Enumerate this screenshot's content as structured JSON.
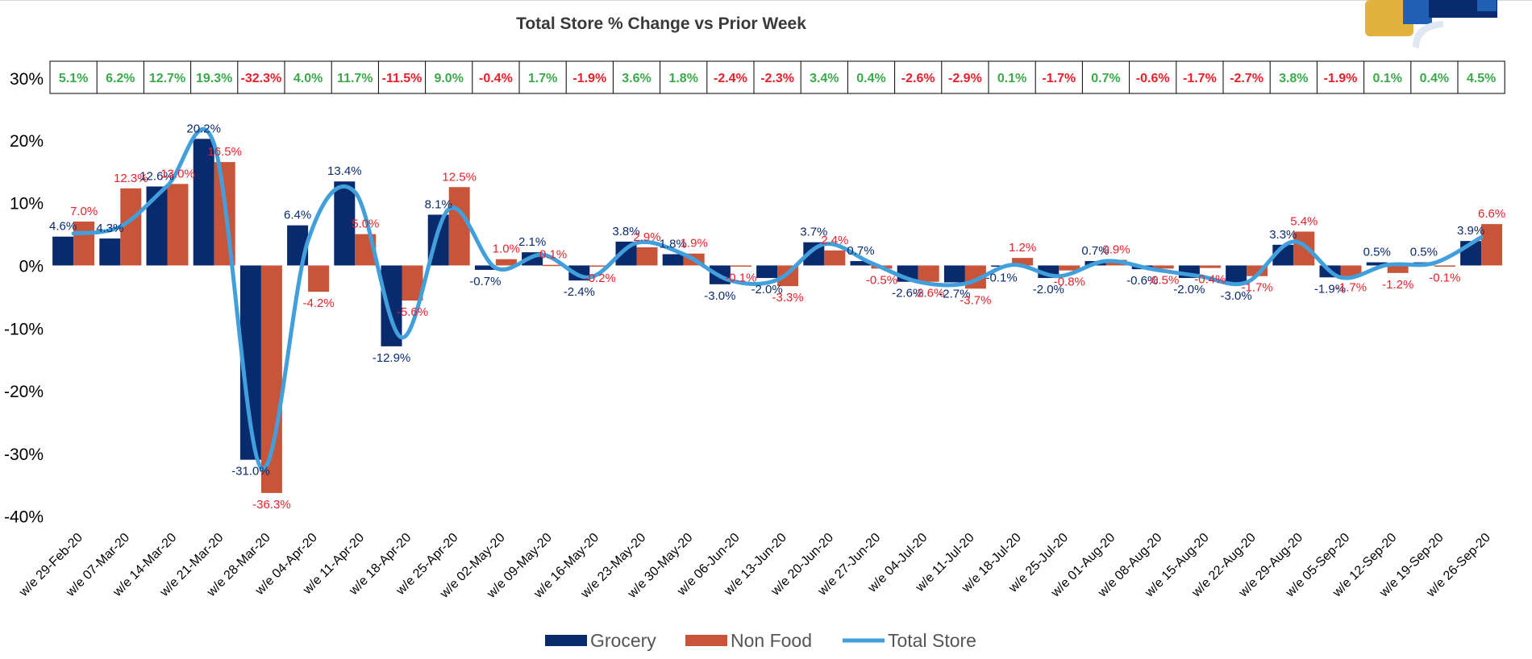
{
  "chart_data": {
    "type": "bar",
    "title": "Total Store % Change vs Prior Week",
    "categories": [
      "w/e 29-Feb-20",
      "w/e 07-Mar-20",
      "w/e 14-Mar-20",
      "w/e 21-Mar-20",
      "w/e 28-Mar-20",
      "w/e 04-Apr-20",
      "w/e 11-Apr-20",
      "w/e 18-Apr-20",
      "w/e 25-Apr-20",
      "w/e 02-May-20",
      "w/e 09-May-20",
      "w/e 16-May-20",
      "w/e 23-May-20",
      "w/e 30-May-20",
      "w/e 06-Jun-20",
      "w/e 13-Jun-20",
      "w/e 20-Jun-20",
      "w/e 27-Jun-20",
      "w/e 04-Jul-20",
      "w/e 11-Jul-20",
      "w/e 18-Jul-20",
      "w/e 25-Jul-20",
      "w/e 01-Aug-20",
      "w/e 08-Aug-20",
      "w/e 15-Aug-20",
      "w/e 22-Aug-20",
      "w/e 29-Aug-20",
      "w/e 05-Sep-20",
      "w/e 12-Sep-20",
      "w/e 19-Sep-20",
      "w/e 26-Sep-20"
    ],
    "series": [
      {
        "name": "Grocery",
        "kind": "bar",
        "color": "#0a2a6e",
        "values": [
          4.6,
          4.3,
          12.6,
          20.2,
          -31.0,
          6.4,
          13.4,
          -12.9,
          8.1,
          -0.7,
          2.1,
          -2.4,
          3.8,
          1.8,
          -3.0,
          -2.0,
          3.7,
          0.7,
          -2.6,
          -2.7,
          -0.1,
          -2.0,
          0.7,
          -0.6,
          -2.0,
          -3.0,
          3.3,
          -1.9,
          0.5,
          0.5,
          3.9
        ],
        "labels": [
          "4.6%",
          "4.3%",
          "12.6%",
          "20.2%",
          "-31.0%",
          "6.4%",
          "13.4%",
          "-12.9%",
          "8.1%",
          "-0.7%",
          "2.1%",
          "-2.4%",
          "3.8%",
          "1.8%",
          "-3.0%",
          "-2.0%",
          "3.7%",
          "0.7%",
          "-2.6%",
          "-2.7%",
          "-0.1%",
          "-2.0%",
          "0.7%",
          "-0.6%",
          "-2.0%",
          "-3.0%",
          "3.3%",
          "-1.9%",
          "0.5%",
          "0.5%",
          "3.9%"
        ]
      },
      {
        "name": "Non Food",
        "kind": "bar",
        "color": "#c8553a",
        "values": [
          7.0,
          12.3,
          13.0,
          16.5,
          -36.3,
          -4.2,
          5.0,
          -5.6,
          12.5,
          1.0,
          0.1,
          -0.2,
          2.9,
          1.9,
          -0.1,
          -3.3,
          2.4,
          -0.5,
          -2.6,
          -3.7,
          1.2,
          -0.8,
          0.9,
          -0.5,
          -0.4,
          -1.7,
          5.4,
          -1.7,
          -1.2,
          -0.1,
          6.6
        ],
        "labels": [
          "7.0%",
          "12.3%",
          "13.0%",
          "16.5%",
          "-36.3%",
          "-4.2%",
          "5.0%",
          "-5.6%",
          "12.5%",
          "1.0%",
          "0.1%",
          "-0.2%",
          "2.9%",
          "1.9%",
          "-0.1%",
          "-3.3%",
          "2.4%",
          "-0.5%",
          "-2.6%",
          "-3.7%",
          "1.2%",
          "-0.8%",
          "0.9%",
          "-0.5%",
          "-0.4%",
          "-1.7%",
          "5.4%",
          "-1.7%",
          "-1.2%",
          "-0.1%",
          "6.6%"
        ]
      },
      {
        "name": "Total Store",
        "kind": "line",
        "color": "#41a0dc",
        "values": [
          5.1,
          6.2,
          12.7,
          19.3,
          -32.3,
          4.0,
          11.7,
          -11.5,
          9.0,
          -0.4,
          1.7,
          -1.9,
          3.6,
          1.8,
          -2.4,
          -2.3,
          3.4,
          0.4,
          -2.6,
          -2.9,
          0.1,
          -1.7,
          0.7,
          -0.6,
          -1.7,
          -2.7,
          3.8,
          -1.9,
          0.1,
          0.4,
          4.5
        ],
        "labels": [
          "5.1%",
          "6.2%",
          "12.7%",
          "19.3%",
          "-32.3%",
          "4.0%",
          "11.7%",
          "-11.5%",
          "9.0%",
          "-0.4%",
          "1.7%",
          "-1.9%",
          "3.6%",
          "1.8%",
          "-2.4%",
          "-2.3%",
          "3.4%",
          "0.4%",
          "-2.6%",
          "-2.9%",
          "0.1%",
          "-1.7%",
          "0.7%",
          "-0.6%",
          "-1.7%",
          "-2.7%",
          "3.8%",
          "-1.9%",
          "0.1%",
          "0.4%",
          "4.5%"
        ]
      }
    ],
    "yticks": [
      "30%",
      "20%",
      "10%",
      "0%",
      "-10%",
      "-20%",
      "-30%",
      "-40%"
    ],
    "ylim": [
      -40,
      30
    ],
    "grid": false,
    "legend_position": "bottom",
    "positive_color": "#3aaa4a",
    "negative_color": "#e8202a"
  },
  "brand_logo": {
    "colors": [
      "#e3b13d",
      "#1f5fb4",
      "#0a2a6e",
      "#dfe8f2"
    ]
  }
}
